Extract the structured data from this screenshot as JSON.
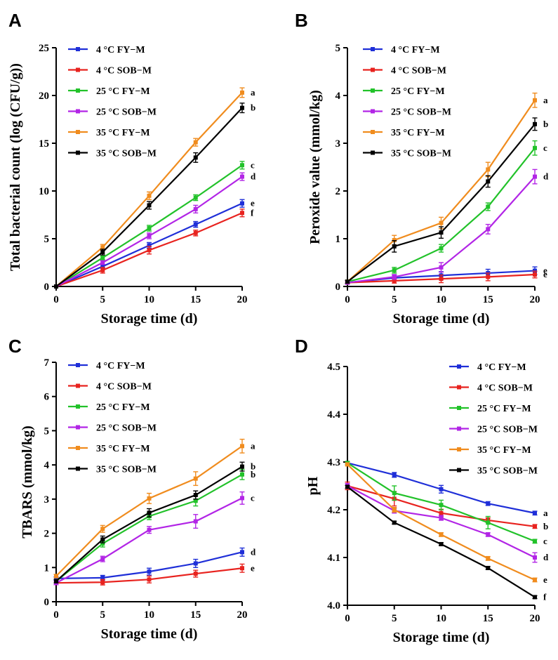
{
  "figure": {
    "series_styles": [
      {
        "name": "4 °C FY−M",
        "color": "#1f2fd8"
      },
      {
        "name": "4 °C SOB−M",
        "color": "#e8231f"
      },
      {
        "name": "25 °C FY−M",
        "color": "#22c22a"
      },
      {
        "name": "25 °C SOB−M",
        "color": "#b225e6"
      },
      {
        "name": "35 °C FY−M",
        "color": "#f08c1e"
      },
      {
        "name": "35 °C SOB−M",
        "color": "#000000"
      }
    ]
  },
  "chart_data": [
    {
      "panel": "A",
      "type": "line",
      "xlabel": "Storage time (d)",
      "ylabel": "Total bacterial count (log (CFU/g))",
      "x": [
        0,
        5,
        10,
        15,
        20
      ],
      "xticks": [
        0,
        5,
        10,
        15,
        20
      ],
      "ylim": [
        0,
        25
      ],
      "yticks": [
        0,
        5,
        10,
        15,
        20,
        25
      ],
      "series": [
        {
          "name": "4 °C FY−M",
          "values": [
            0,
            2.1,
            4.3,
            6.5,
            8.7
          ],
          "errors": [
            0,
            0.2,
            0.3,
            0.3,
            0.4
          ],
          "letter": "e"
        },
        {
          "name": "4 °C SOB−M",
          "values": [
            0,
            1.7,
            3.8,
            5.6,
            7.7
          ],
          "errors": [
            0,
            0.3,
            0.4,
            0.3,
            0.4
          ],
          "letter": "f"
        },
        {
          "name": "25 °C FY−M",
          "values": [
            0,
            3.0,
            6.1,
            9.3,
            12.7
          ],
          "errors": [
            0,
            0.2,
            0.3,
            0.3,
            0.4
          ],
          "letter": "c"
        },
        {
          "name": "25 °C SOB−M",
          "values": [
            0,
            2.5,
            5.3,
            8.1,
            11.5
          ],
          "errors": [
            0,
            0.2,
            0.3,
            0.4,
            0.4
          ],
          "letter": "d"
        },
        {
          "name": "35 °C FY−M",
          "values": [
            0,
            4.1,
            9.5,
            15.1,
            20.3
          ],
          "errors": [
            0,
            0.3,
            0.4,
            0.4,
            0.5
          ],
          "letter": "a"
        },
        {
          "name": "35 °C SOB−M",
          "values": [
            0,
            3.6,
            8.5,
            13.5,
            18.7
          ],
          "errors": [
            0,
            0.3,
            0.4,
            0.5,
            0.5
          ],
          "letter": "b"
        }
      ]
    },
    {
      "panel": "B",
      "type": "line",
      "xlabel": "Storage time (d)",
      "ylabel": "Peroxide value (mmol/kg)",
      "x": [
        0,
        5,
        10,
        15,
        20
      ],
      "xticks": [
        0,
        5,
        10,
        15,
        20
      ],
      "ylim": [
        0,
        5
      ],
      "yticks": [
        0,
        1,
        2,
        3,
        4,
        5
      ],
      "series": [
        {
          "name": "4 °C FY−M",
          "values": [
            0.08,
            0.18,
            0.23,
            0.28,
            0.33
          ],
          "errors": [
            0.03,
            0.06,
            0.08,
            0.08,
            0.08
          ],
          "letter": "e"
        },
        {
          "name": "4 °C SOB−M",
          "values": [
            0.08,
            0.12,
            0.16,
            0.2,
            0.25
          ],
          "errors": [
            0.03,
            0.05,
            0.08,
            0.08,
            0.07
          ],
          "letter": "e"
        },
        {
          "name": "25 °C FY−M",
          "values": [
            0.1,
            0.34,
            0.8,
            1.67,
            2.9
          ],
          "errors": [
            0.03,
            0.06,
            0.08,
            0.08,
            0.15
          ],
          "letter": "c"
        },
        {
          "name": "25 °C SOB−M",
          "values": [
            0.08,
            0.2,
            0.4,
            1.2,
            2.3
          ],
          "errors": [
            0.03,
            0.05,
            0.1,
            0.1,
            0.15
          ],
          "letter": "d"
        },
        {
          "name": "35 °C FY−M",
          "values": [
            0.1,
            0.97,
            1.33,
            2.45,
            3.9
          ],
          "errors": [
            0.03,
            0.1,
            0.12,
            0.15,
            0.15
          ],
          "letter": "a"
        },
        {
          "name": "35 °C SOB−M",
          "values": [
            0.1,
            0.84,
            1.13,
            2.2,
            3.4
          ],
          "errors": [
            0.03,
            0.12,
            0.12,
            0.12,
            0.13
          ],
          "letter": "b"
        }
      ]
    },
    {
      "panel": "C",
      "type": "line",
      "xlabel": "Storage time (d)",
      "ylabel": "TBARS (mmol/kg)",
      "x": [
        0,
        5,
        10,
        15,
        20
      ],
      "xticks": [
        0,
        5,
        10,
        15,
        20
      ],
      "ylim": [
        0,
        7
      ],
      "yticks": [
        0,
        1,
        2,
        3,
        4,
        5,
        6,
        7
      ],
      "series": [
        {
          "name": "4 °C FY−M",
          "values": [
            0.68,
            0.7,
            0.88,
            1.12,
            1.45
          ],
          "errors": [
            0.05,
            0.07,
            0.1,
            0.12,
            0.12
          ],
          "letter": "d"
        },
        {
          "name": "4 °C SOB−M",
          "values": [
            0.55,
            0.57,
            0.65,
            0.82,
            0.98
          ],
          "errors": [
            0.05,
            0.08,
            0.1,
            0.1,
            0.12
          ],
          "letter": "e"
        },
        {
          "name": "25 °C FY−M",
          "values": [
            0.6,
            1.7,
            2.5,
            2.95,
            3.72
          ],
          "errors": [
            0.05,
            0.1,
            0.1,
            0.15,
            0.15
          ],
          "letter": "b"
        },
        {
          "name": "25 °C SOB−M",
          "values": [
            0.55,
            1.25,
            2.1,
            2.35,
            3.03
          ],
          "errors": [
            0.05,
            0.08,
            0.1,
            0.2,
            0.18
          ],
          "letter": "c"
        },
        {
          "name": "35 °C FY−M",
          "values": [
            0.75,
            2.13,
            3.02,
            3.6,
            4.55
          ],
          "errors": [
            0.05,
            0.1,
            0.15,
            0.2,
            0.2
          ],
          "letter": "a"
        },
        {
          "name": "35 °C SOB−M",
          "values": [
            0.6,
            1.82,
            2.6,
            3.12,
            3.95
          ],
          "errors": [
            0.05,
            0.1,
            0.12,
            0.12,
            0.13
          ],
          "letter": "b"
        }
      ]
    },
    {
      "panel": "D",
      "type": "line",
      "xlabel": "Storage time (d)",
      "ylabel": "pH",
      "x": [
        0,
        5,
        10,
        15,
        20
      ],
      "xticks": [
        0,
        5,
        10,
        15,
        20
      ],
      "ylim": [
        4.0,
        4.5
      ],
      "yticks": [
        "4.0",
        "4.1",
        "4.2",
        "4.3",
        "4.4",
        "4.5"
      ],
      "series": [
        {
          "name": "4 °C FY−M",
          "values": [
            4.298,
            4.273,
            4.243,
            4.213,
            4.193
          ],
          "errors": [
            0.003,
            0.005,
            0.008,
            0.004,
            0.004
          ],
          "letter": "a"
        },
        {
          "name": "4 °C SOB−M",
          "values": [
            4.25,
            4.223,
            4.193,
            4.178,
            4.165
          ],
          "errors": [
            0.008,
            0.015,
            0.008,
            0.005,
            0.004
          ],
          "letter": "b"
        },
        {
          "name": "25 °C FY−M",
          "values": [
            4.298,
            4.235,
            4.21,
            4.173,
            4.134
          ],
          "errors": [
            0.003,
            0.015,
            0.01,
            0.013,
            0.004
          ],
          "letter": "c"
        },
        {
          "name": "25 °C SOB−M",
          "values": [
            4.25,
            4.198,
            4.183,
            4.148,
            4.1
          ],
          "errors": [
            0.005,
            0.005,
            0.005,
            0.004,
            0.01
          ],
          "letter": "d"
        },
        {
          "name": "35 °C FY−M",
          "values": [
            4.295,
            4.2,
            4.148,
            4.098,
            4.053
          ],
          "errors": [
            0.003,
            0.005,
            0.004,
            0.004,
            0.004
          ],
          "letter": "e"
        },
        {
          "name": "35 °C SOB−M",
          "values": [
            4.248,
            4.173,
            4.128,
            4.078,
            4.017
          ],
          "errors": [
            0.003,
            0.003,
            0.003,
            0.003,
            0.003
          ],
          "letter": "f"
        }
      ]
    }
  ]
}
